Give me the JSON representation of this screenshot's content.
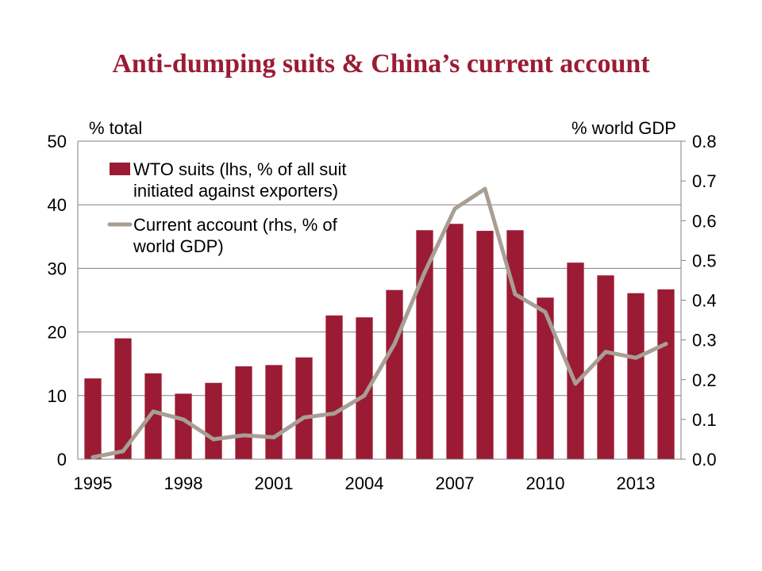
{
  "chart_data": {
    "type": "bar",
    "title": "Anti-dumping suits & China’s current account",
    "left_axis_label": "% total",
    "right_axis_label": "% world GDP",
    "x": [
      1995,
      1996,
      1997,
      1998,
      1999,
      2000,
      2001,
      2002,
      2003,
      2004,
      2005,
      2006,
      2007,
      2008,
      2009,
      2010,
      2011,
      2012,
      2013,
      2014
    ],
    "x_tick_labels": [
      "1995",
      "1998",
      "2001",
      "2004",
      "2007",
      "2010",
      "2013"
    ],
    "y_left_ticks": [
      "0",
      "10",
      "20",
      "30",
      "40",
      "50"
    ],
    "y_right_ticks": [
      "0.0",
      "0.1",
      "0.2",
      "0.3",
      "0.4",
      "0.5",
      "0.6",
      "0.7",
      "0.8"
    ],
    "ylim_left": [
      0,
      50
    ],
    "ylim_right": [
      0,
      0.8
    ],
    "grid": true,
    "legend_position": "top-left",
    "series": [
      {
        "name_lines": [
          "WTO suits (lhs, % of all suit",
          "initiated against exporters)"
        ],
        "kind": "bar",
        "axis": "left",
        "color": "#9b1b34",
        "values": [
          12.7,
          19.0,
          13.5,
          10.3,
          12.0,
          14.6,
          14.8,
          16.0,
          22.6,
          22.3,
          26.6,
          36.0,
          37.0,
          35.9,
          36.0,
          25.4,
          30.9,
          28.9,
          26.1,
          26.7
        ]
      },
      {
        "name_lines": [
          "Current account (rhs, % of",
          "world GDP)"
        ],
        "kind": "line",
        "axis": "right",
        "color": "#a89e94",
        "values": [
          0.005,
          0.02,
          0.12,
          0.1,
          0.05,
          0.06,
          0.055,
          0.105,
          0.115,
          0.16,
          0.29,
          0.47,
          0.63,
          0.68,
          0.415,
          0.37,
          0.19,
          0.27,
          0.255,
          0.29
        ]
      }
    ]
  }
}
